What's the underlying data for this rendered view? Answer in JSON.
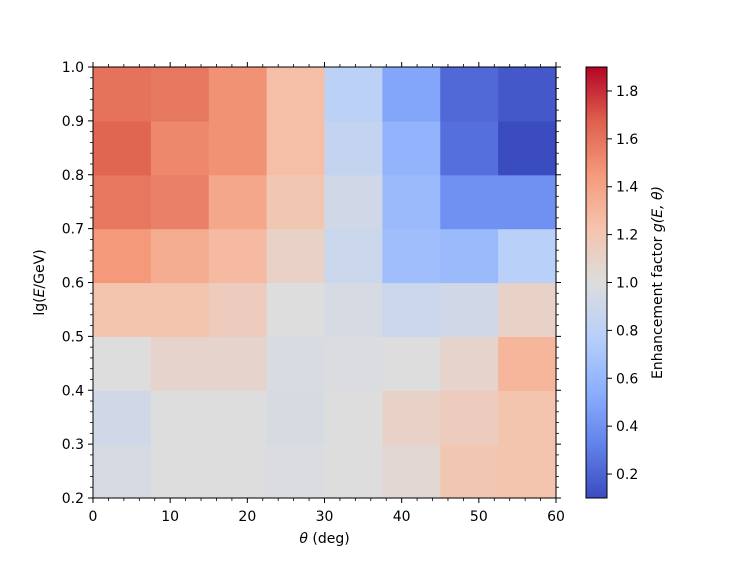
{
  "chart_data": {
    "type": "heatmap",
    "title": "",
    "xlabel": "θ (deg)",
    "ylabel": "lg(E/GeV)",
    "xlim": [
      0,
      60
    ],
    "ylim": [
      0.2,
      1.0
    ],
    "x_edges": [
      0,
      7.5,
      15,
      22.5,
      30,
      37.5,
      45,
      52.5,
      60
    ],
    "y_edges": [
      0.2,
      0.3,
      0.4,
      0.5,
      0.6,
      0.7,
      0.8,
      0.9,
      1.0
    ],
    "x_ticks": [
      0,
      10,
      20,
      30,
      40,
      50,
      60
    ],
    "x_tick_labels": [
      "0",
      "10",
      "20",
      "30",
      "40",
      "50",
      "60"
    ],
    "y_ticks": [
      0.2,
      0.3,
      0.4,
      0.5,
      0.6,
      0.7,
      0.8,
      0.9,
      1.0
    ],
    "y_tick_labels": [
      "0.2",
      "0.3",
      "0.4",
      "0.5",
      "0.6",
      "0.7",
      "0.8",
      "0.9",
      "1.0"
    ],
    "values": [
      [
        0.95,
        1.0,
        1.0,
        0.98,
        1.0,
        1.05,
        1.2,
        1.22
      ],
      [
        0.92,
        1.0,
        1.0,
        0.96,
        1.0,
        1.1,
        1.15,
        1.22
      ],
      [
        1.0,
        1.08,
        1.08,
        0.97,
        0.98,
        1.0,
        1.08,
        1.3
      ],
      [
        1.22,
        1.22,
        1.15,
        1.0,
        0.95,
        0.88,
        0.92,
        1.1
      ],
      [
        1.45,
        1.35,
        1.28,
        1.1,
        0.88,
        0.65,
        0.62,
        0.78
      ],
      [
        1.58,
        1.55,
        1.38,
        1.2,
        0.92,
        0.62,
        0.4,
        0.4
      ],
      [
        1.65,
        1.52,
        1.48,
        1.25,
        0.85,
        0.58,
        0.25,
        0.1
      ],
      [
        1.6,
        1.58,
        1.48,
        1.25,
        0.8,
        0.5,
        0.22,
        0.15
      ]
    ],
    "colormap": "coolwarm",
    "vmin": 0.1,
    "vmax": 1.9,
    "colorbar": {
      "label": "Enhancement factor g(E, θ)",
      "ticks": [
        0.2,
        0.4,
        0.6,
        0.8,
        1.0,
        1.2,
        1.4,
        1.6,
        1.8
      ],
      "tick_labels": [
        "0.2",
        "0.4",
        "0.6",
        "0.8",
        "1.0",
        "1.2",
        "1.4",
        "1.6",
        "1.8"
      ]
    },
    "grid": false,
    "legend": "none"
  }
}
